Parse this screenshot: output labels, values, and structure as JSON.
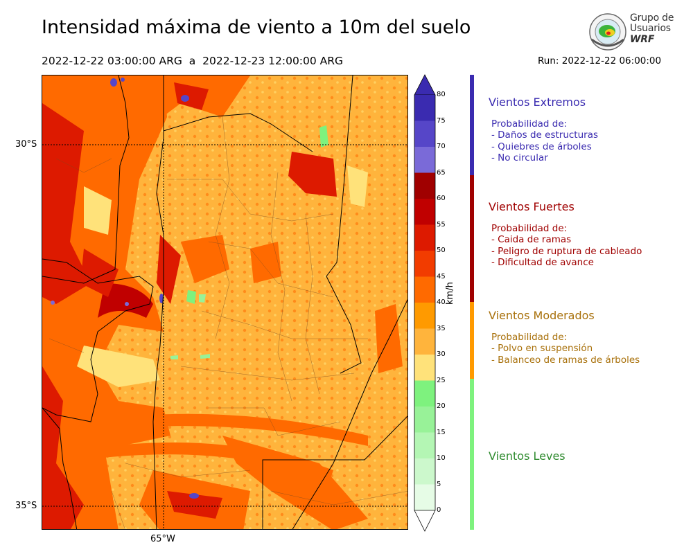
{
  "header": {
    "title": "Intensidad máxima de viento a 10m del suelo",
    "period": "2022-12-22 03:00:00 ARG  a  2022-12-23 12:00:00 ARG",
    "run": "Run: 2022-12-22 06:00:00"
  },
  "logo": {
    "line1": "Grupo de",
    "line2": "Usuarios",
    "line3": "WRF"
  },
  "map": {
    "lat_labels": [
      "30°S",
      "35°S"
    ],
    "lon_labels": [
      "65°W"
    ],
    "icon": "wind-speed-field"
  },
  "colorbar": {
    "unit": "km/h",
    "ticks": [
      "80",
      "75",
      "70",
      "65",
      "60",
      "55",
      "50",
      "45",
      "40",
      "35",
      "30",
      "25",
      "20",
      "15",
      "10",
      "5",
      "0"
    ],
    "colors": [
      "#3a2bb0",
      "#5646c8",
      "#7a6ad8",
      "#a00000",
      "#c00000",
      "#dd1a00",
      "#f23c00",
      "#ff6a00",
      "#ff9a00",
      "#ffb43c",
      "#ffe27a",
      "#7ef27e",
      "#98f298",
      "#b4f6b4",
      "#ccf8cc",
      "#e6fce6"
    ]
  },
  "categories": [
    {
      "title": "Vientos Extremos",
      "color": "#3a2bb0",
      "lines": [
        "Probabilidad de:",
        "- Daños de estructuras",
        "- Quiebres de árboles",
        "- No circular"
      ]
    },
    {
      "title": "Vientos Fuertes",
      "color": "#a00000",
      "lines": [
        "Probabilidad de:",
        "- Caida de ramas",
        "- Peligro de ruptura de cableado",
        "- Dificultad de avance"
      ]
    },
    {
      "title": "Vientos Moderados",
      "color": "#a8700a",
      "band": "#ff9a00",
      "lines": [
        "Probabilidad de:",
        "- Polvo en suspensión",
        "- Balanceo de ramas de árboles"
      ]
    },
    {
      "title": "Vientos Leves",
      "color": "#2e8b2e",
      "band": "#7ef27e",
      "lines": []
    }
  ]
}
